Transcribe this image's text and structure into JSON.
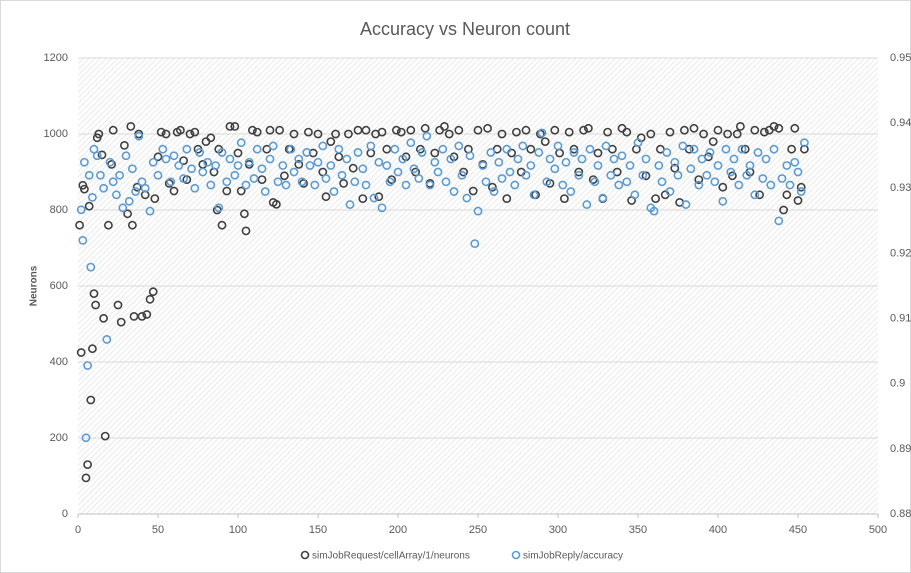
{
  "chart_data": {
    "type": "scatter",
    "title": "Accuracy vs Neuron count",
    "ylabel": "Neurons",
    "xlim": [
      0,
      500
    ],
    "xticks": [
      0,
      50,
      100,
      150,
      200,
      250,
      300,
      350,
      400,
      450,
      500
    ],
    "ylim": [
      0,
      1200
    ],
    "yticks": [
      0,
      200,
      400,
      600,
      800,
      1000,
      1200
    ],
    "y2lim": [
      0.88,
      0.95
    ],
    "y2ticks": [
      0.88,
      0.89,
      0.9,
      0.91,
      0.92,
      0.93,
      0.94,
      0.95
    ],
    "grid": true,
    "legend": "bottom",
    "series": [
      {
        "name": "simJobRequest/cellArray/1/neurons",
        "color": "#404040",
        "x": [
          1,
          2,
          3,
          4,
          5,
          6,
          7,
          8,
          9,
          10,
          11,
          12,
          13,
          15,
          16,
          17,
          19,
          21,
          22,
          25,
          27,
          29,
          31,
          33,
          34,
          35,
          37,
          38,
          40,
          42,
          43,
          45,
          47,
          48,
          50,
          52,
          55,
          57,
          60,
          62,
          64,
          66,
          68,
          70,
          73,
          75,
          78,
          80,
          83,
          85,
          87,
          88,
          90,
          93,
          95,
          98,
          100,
          102,
          104,
          105,
          107,
          109,
          112,
          115,
          118,
          120,
          122,
          124,
          126,
          129,
          132,
          135,
          138,
          141,
          144,
          147,
          150,
          153,
          155,
          158,
          161,
          163,
          166,
          169,
          172,
          175,
          178,
          180,
          183,
          186,
          188,
          190,
          193,
          196,
          199,
          202,
          205,
          208,
          211,
          214,
          217,
          220,
          223,
          226,
          229,
          232,
          235,
          238,
          241,
          244,
          247,
          250,
          253,
          256,
          259,
          262,
          265,
          268,
          271,
          274,
          277,
          280,
          283,
          286,
          289,
          292,
          295,
          298,
          301,
          304,
          307,
          310,
          313,
          316,
          319,
          322,
          325,
          328,
          331,
          334,
          337,
          340,
          343,
          346,
          349,
          352,
          355,
          358,
          361,
          364,
          367,
          370,
          373,
          376,
          379,
          382,
          385,
          388,
          391,
          394,
          397,
          400,
          403,
          406,
          409,
          412,
          414,
          417,
          420,
          423,
          426,
          429,
          432,
          435,
          438,
          441,
          443,
          446,
          448,
          450,
          452,
          454
        ],
        "values": [
          760,
          425,
          865,
          855,
          95,
          130,
          810,
          300,
          435,
          580,
          550,
          990,
          1000,
          945,
          515,
          205,
          760,
          920,
          1010,
          550,
          505,
          970,
          790,
          1020,
          760,
          520,
          860,
          1000,
          520,
          840,
          525,
          565,
          585,
          830,
          940,
          1005,
          1000,
          870,
          850,
          1005,
          1010,
          930,
          880,
          1000,
          1005,
          960,
          920,
          980,
          990,
          900,
          800,
          960,
          760,
          850,
          1020,
          1020,
          950,
          850,
          790,
          745,
          920,
          1010,
          1005,
          880,
          960,
          1010,
          820,
          815,
          1010,
          890,
          960,
          1000,
          920,
          870,
          1005,
          950,
          1000,
          900,
          835,
          980,
          1000,
          940,
          870,
          1000,
          910,
          1010,
          830,
          1010,
          950,
          1000,
          835,
          1005,
          960,
          880,
          1010,
          1005,
          940,
          1010,
          900,
          960,
          1015,
          870,
          950,
          1010,
          1020,
          1000,
          940,
          1010,
          900,
          960,
          850,
          1010,
          920,
          1015,
          860,
          960,
          1000,
          830,
          950,
          1005,
          900,
          1010,
          960,
          840,
          1000,
          980,
          870,
          1010,
          950,
          830,
          1005,
          960,
          900,
          1010,
          1015,
          880,
          950,
          830,
          1005,
          960,
          900,
          1015,
          1005,
          825,
          960,
          990,
          890,
          1000,
          830,
          960,
          840,
          1005,
          910,
          820,
          1010,
          960,
          1015,
          880,
          1000,
          940,
          980,
          1010,
          860,
          1000,
          890,
          1000,
          1020,
          960,
          900,
          1010,
          840,
          1005,
          1010,
          1020,
          1015,
          800,
          840,
          960,
          1015,
          825,
          860,
          960
        ]
      },
      {
        "name": "simJobReply/accuracy",
        "color": "#5b9bd5",
        "axis": "y2",
        "x": [
          2,
          3,
          4,
          5,
          6,
          7,
          8,
          9,
          10,
          12,
          14,
          16,
          18,
          20,
          22,
          24,
          26,
          28,
          30,
          32,
          34,
          36,
          38,
          40,
          42,
          45,
          47,
          50,
          53,
          55,
          58,
          60,
          63,
          66,
          68,
          71,
          73,
          76,
          78,
          81,
          83,
          86,
          88,
          90,
          93,
          95,
          98,
          100,
          102,
          105,
          107,
          110,
          112,
          115,
          117,
          120,
          122,
          125,
          128,
          130,
          133,
          135,
          138,
          140,
          143,
          145,
          148,
          150,
          153,
          155,
          158,
          160,
          163,
          165,
          168,
          170,
          173,
          175,
          178,
          180,
          183,
          185,
          188,
          190,
          193,
          195,
          198,
          200,
          203,
          205,
          208,
          210,
          213,
          215,
          218,
          220,
          223,
          225,
          228,
          230,
          233,
          235,
          238,
          240,
          243,
          245,
          248,
          250,
          253,
          255,
          258,
          260,
          263,
          265,
          268,
          270,
          273,
          275,
          278,
          280,
          283,
          285,
          288,
          290,
          293,
          295,
          298,
          300,
          303,
          305,
          308,
          310,
          313,
          315,
          318,
          320,
          323,
          325,
          328,
          330,
          333,
          335,
          338,
          340,
          343,
          345,
          348,
          350,
          353,
          355,
          358,
          360,
          363,
          365,
          368,
          370,
          373,
          375,
          378,
          380,
          383,
          385,
          388,
          390,
          393,
          395,
          398,
          400,
          403,
          405,
          408,
          410,
          413,
          415,
          418,
          420,
          423,
          425,
          428,
          430,
          433,
          435,
          438,
          440,
          443,
          445,
          448,
          450,
          452,
          454
        ],
        "values": [
          0.9267,
          0.922,
          0.934,
          0.8917,
          0.9028,
          0.932,
          0.9179,
          0.9286,
          0.936,
          0.935,
          0.932,
          0.93,
          0.9068,
          0.934,
          0.931,
          0.929,
          0.932,
          0.927,
          0.935,
          0.928,
          0.933,
          0.9295,
          0.938,
          0.931,
          0.93,
          0.9265,
          0.934,
          0.932,
          0.936,
          0.9345,
          0.931,
          0.935,
          0.9335,
          0.9315,
          0.936,
          0.933,
          0.93,
          0.9355,
          0.9325,
          0.934,
          0.9305,
          0.9335,
          0.927,
          0.9355,
          0.931,
          0.9345,
          0.932,
          0.9335,
          0.937,
          0.9305,
          0.934,
          0.9315,
          0.936,
          0.933,
          0.9295,
          0.9345,
          0.9365,
          0.931,
          0.9335,
          0.9305,
          0.936,
          0.9325,
          0.9345,
          0.931,
          0.9355,
          0.9335,
          0.9305,
          0.934,
          0.9365,
          0.9315,
          0.9335,
          0.9295,
          0.936,
          0.932,
          0.9345,
          0.9275,
          0.931,
          0.9355,
          0.933,
          0.9305,
          0.9365,
          0.9285,
          0.934,
          0.927,
          0.9335,
          0.931,
          0.936,
          0.9325,
          0.9345,
          0.9305,
          0.937,
          0.933,
          0.9315,
          0.9355,
          0.938,
          0.9305,
          0.934,
          0.9325,
          0.936,
          0.931,
          0.9345,
          0.9295,
          0.9365,
          0.932,
          0.9285,
          0.935,
          0.9215,
          0.9265,
          0.9335,
          0.931,
          0.9355,
          0.9295,
          0.934,
          0.9315,
          0.936,
          0.9325,
          0.9305,
          0.9345,
          0.9365,
          0.932,
          0.9335,
          0.929,
          0.9355,
          0.9385,
          0.931,
          0.9345,
          0.933,
          0.9365,
          0.9305,
          0.934,
          0.9295,
          0.9355,
          0.932,
          0.9345,
          0.9275,
          0.936,
          0.931,
          0.9335,
          0.9285,
          0.9365,
          0.932,
          0.9345,
          0.9305,
          0.935,
          0.931,
          0.9335,
          0.929,
          0.937,
          0.932,
          0.9345,
          0.927,
          0.9265,
          0.9335,
          0.931,
          0.9355,
          0.9295,
          0.934,
          0.932,
          0.9365,
          0.9275,
          0.933,
          0.936,
          0.9305,
          0.9345,
          0.932,
          0.9355,
          0.931,
          0.9335,
          0.928,
          0.936,
          0.9325,
          0.9345,
          0.9305,
          0.936,
          0.932,
          0.9335,
          0.929,
          0.9355,
          0.9315,
          0.9345,
          0.9305,
          0.936,
          0.925,
          0.9315,
          0.9335,
          0.9305,
          0.934,
          0.9325,
          0.9295,
          0.937
        ]
      }
    ]
  }
}
